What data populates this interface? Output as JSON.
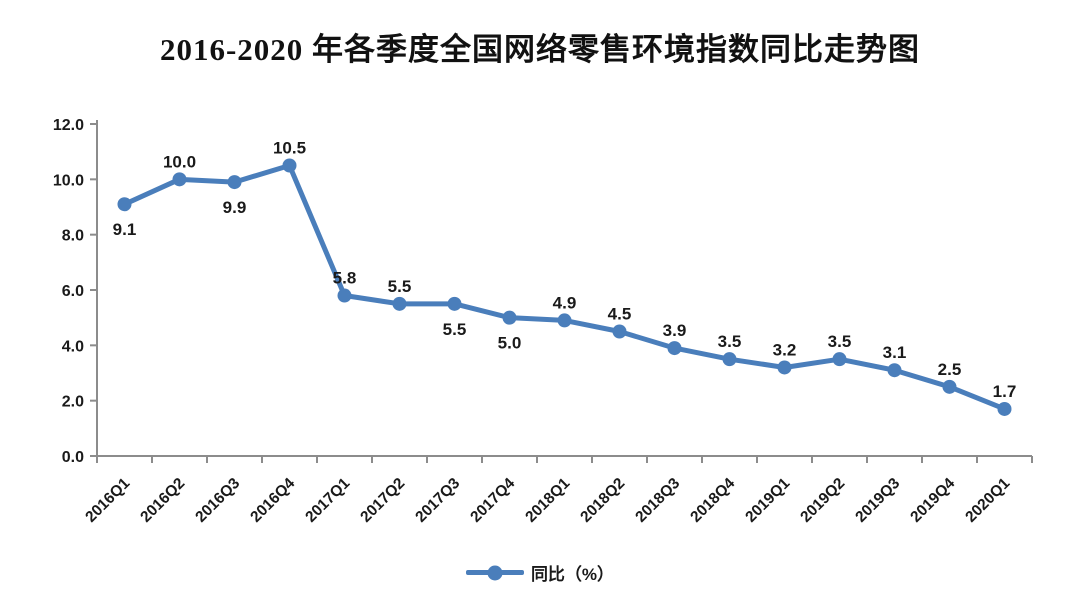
{
  "chart_data": {
    "type": "line",
    "title": "2016-2020 年各季度全国网络零售环境指数同比走势图",
    "categories": [
      "2016Q1",
      "2016Q2",
      "2016Q3",
      "2016Q4",
      "2017Q1",
      "2017Q2",
      "2017Q3",
      "2017Q4",
      "2018Q1",
      "2018Q2",
      "2018Q3",
      "2018Q4",
      "2019Q1",
      "2019Q2",
      "2019Q3",
      "2019Q4",
      "2020Q1"
    ],
    "series": [
      {
        "name": "同比（%）",
        "values": [
          9.1,
          10.0,
          9.9,
          10.5,
          5.8,
          5.5,
          5.5,
          5.0,
          4.9,
          4.5,
          3.9,
          3.5,
          3.2,
          3.5,
          3.1,
          2.5,
          1.7
        ],
        "color": "#4A7EBB"
      }
    ],
    "xlabel": "",
    "ylabel": "",
    "ylim": [
      0,
      12
    ],
    "ytick_step": 2,
    "ytick_labels": [
      "0.0",
      "2.0",
      "4.0",
      "6.0",
      "8.0",
      "10.0",
      "12.0"
    ],
    "grid": false,
    "show_data_labels": true,
    "data_label_positions": [
      "below",
      "above",
      "below",
      "above",
      "above",
      "above",
      "below",
      "below",
      "above",
      "above",
      "above",
      "above",
      "above",
      "above",
      "above",
      "above",
      "above"
    ],
    "marker": "circle",
    "legend_position": "bottom",
    "x_label_rotation": -45
  },
  "colors": {
    "line": "#4A7EBB",
    "axis": "#8C8C8C",
    "text": "#1a1a1a"
  }
}
